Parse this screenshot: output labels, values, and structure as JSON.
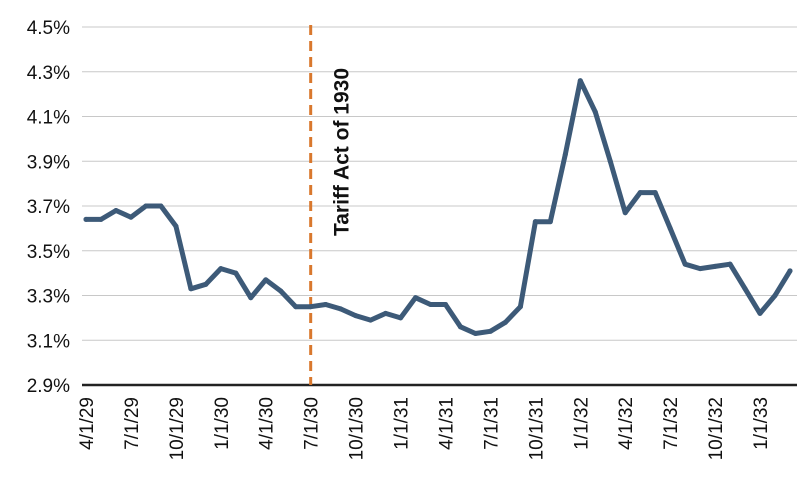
{
  "chart_data": {
    "type": "line",
    "title": "",
    "xlabel": "",
    "ylabel": "",
    "ylim": [
      2.9,
      4.5
    ],
    "y_ticks": [
      "2.9%",
      "3.1%",
      "3.3%",
      "3.5%",
      "3.7%",
      "3.9%",
      "4.1%",
      "4.3%",
      "4.5%"
    ],
    "y_tick_values": [
      2.9,
      3.1,
      3.3,
      3.5,
      3.7,
      3.9,
      4.1,
      4.3,
      4.5
    ],
    "x_ticks": [
      "4/1/29",
      "7/1/29",
      "10/1/29",
      "1/1/30",
      "4/1/30",
      "7/1/30",
      "10/1/30",
      "1/1/31",
      "4/1/31",
      "7/1/31",
      "10/1/31",
      "1/1/32",
      "4/1/32",
      "7/1/32",
      "10/1/32",
      "1/1/33"
    ],
    "grid": "horizontal",
    "line_color": "#3d5a78",
    "annotation": {
      "text": "Tariff Act of 1930",
      "x": "7/1/30",
      "color": "#d9782d"
    },
    "x": [
      "4/1/29",
      "5/1/29",
      "6/1/29",
      "7/1/29",
      "8/1/29",
      "9/1/29",
      "10/1/29",
      "11/1/29",
      "12/1/29",
      "1/1/30",
      "2/1/30",
      "3/1/30",
      "4/1/30",
      "5/1/30",
      "6/1/30",
      "7/1/30",
      "8/1/30",
      "9/1/30",
      "10/1/30",
      "11/1/30",
      "12/1/30",
      "1/1/31",
      "2/1/31",
      "3/1/31",
      "4/1/31",
      "5/1/31",
      "6/1/31",
      "7/1/31",
      "8/1/31",
      "9/1/31",
      "10/1/31",
      "11/1/31",
      "12/1/31",
      "1/1/32",
      "2/1/32",
      "3/1/32",
      "4/1/32",
      "5/1/32",
      "6/1/32",
      "7/1/32",
      "8/1/32",
      "9/1/32",
      "10/1/32",
      "11/1/32",
      "12/1/32",
      "1/1/33",
      "2/1/33",
      "3/1/33"
    ],
    "values": [
      3.64,
      3.64,
      3.68,
      3.65,
      3.7,
      3.7,
      3.61,
      3.33,
      3.35,
      3.42,
      3.4,
      3.29,
      3.37,
      3.32,
      3.25,
      3.25,
      3.26,
      3.24,
      3.21,
      3.19,
      3.22,
      3.2,
      3.29,
      3.26,
      3.26,
      3.16,
      3.13,
      3.14,
      3.18,
      3.25,
      3.63,
      3.63,
      3.93,
      4.26,
      4.12,
      3.9,
      3.67,
      3.76,
      3.76,
      3.6,
      3.44,
      3.42,
      3.43,
      3.44,
      3.33,
      3.22,
      3.3,
      3.41
    ]
  }
}
